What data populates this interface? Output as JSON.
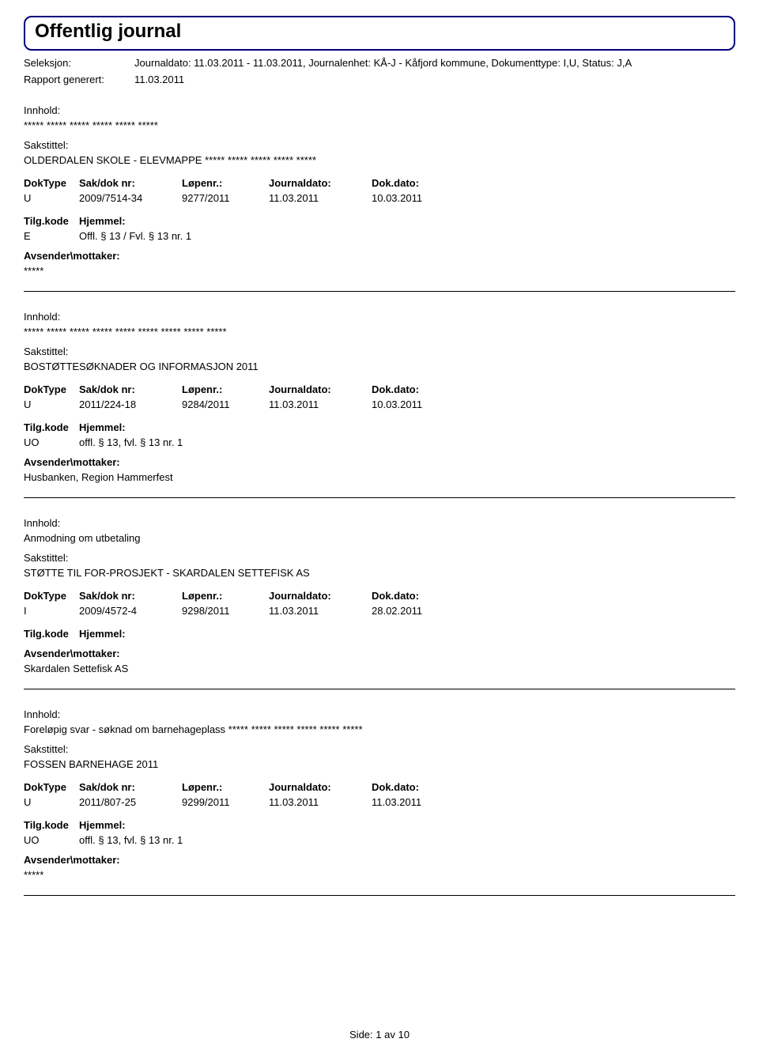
{
  "title": "Offentlig journal",
  "header": {
    "seleksjon_label": "Seleksjon:",
    "seleksjon_value": "Journaldato: 11.03.2011 - 11.03.2011, Journalenhet: KÅ-J - Kåfjord kommune, Dokumenttype: I,U, Status: J,A",
    "rapport_label": "Rapport generert:",
    "rapport_value": "11.03.2011"
  },
  "labels": {
    "innhold": "Innhold:",
    "sakstittel": "Sakstittel:",
    "doktype": "DokType",
    "sakdok": "Sak/dok nr:",
    "lopenr": "Løpenr.:",
    "journaldato": "Journaldato:",
    "dokdato": "Dok.dato:",
    "tilgkode": "Tilg.kode",
    "hjemmel": "Hjemmel:",
    "avsender": "Avsender\\mottaker:"
  },
  "entries": [
    {
      "innhold": "***** ***** ***** ***** ***** *****",
      "sakstittel": "OLDERDALEN SKOLE - ELEVMAPPE  ***** ***** ***** ***** *****",
      "doktype": "U",
      "sakdok": "2009/7514-34",
      "lopenr": "9277/2011",
      "journaldato": "11.03.2011",
      "dokdato": "10.03.2011",
      "tilgkode": "E",
      "hjemmel_text": "Offl. § 13 / Fvl. § 13 nr. 1",
      "avsender": "*****"
    },
    {
      "innhold": "***** ***** ***** ***** ***** ***** ***** ***** *****",
      "sakstittel": "BOSTØTTESØKNADER OG INFORMASJON 2011",
      "doktype": "U",
      "sakdok": "2011/224-18",
      "lopenr": "9284/2011",
      "journaldato": "11.03.2011",
      "dokdato": "10.03.2011",
      "tilgkode": "UO",
      "hjemmel_text": "offl. § 13, fvl. § 13 nr. 1",
      "avsender": "Husbanken, Region Hammerfest"
    },
    {
      "innhold": "Anmodning om utbetaling",
      "sakstittel": "STØTTE TIL FOR-PROSJEKT - SKARDALEN SETTEFISK AS",
      "doktype": "I",
      "sakdok": "2009/4572-4",
      "lopenr": "9298/2011",
      "journaldato": "11.03.2011",
      "dokdato": "28.02.2011",
      "tilgkode": "",
      "hjemmel_text": "",
      "avsender": "Skardalen Settefisk AS"
    },
    {
      "innhold": "Foreløpig svar - søknad om barnehageplass ***** ***** ***** ***** ***** *****",
      "sakstittel": "FOSSEN BARNEHAGE 2011",
      "doktype": "U",
      "sakdok": "2011/807-25",
      "lopenr": "9299/2011",
      "journaldato": "11.03.2011",
      "dokdato": "11.03.2011",
      "tilgkode": "UO",
      "hjemmel_text": "offl. § 13, fvl. § 13 nr. 1",
      "avsender": "*****"
    }
  ],
  "footer": {
    "side_label": "Side:",
    "page": "1",
    "av": "av",
    "total": "10"
  }
}
